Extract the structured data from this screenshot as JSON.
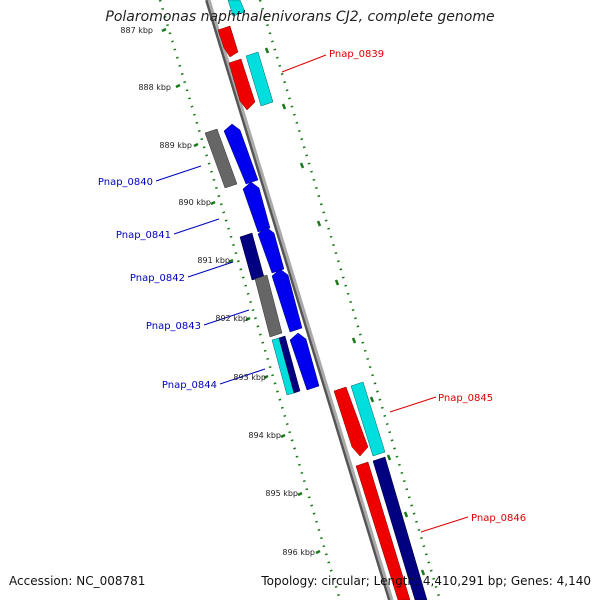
{
  "title": "Polaromonas naphthalenivorans CJ2, complete genome",
  "accession": "Accession: NC_008781",
  "summary": "Topology: circular; Length: 4,410,291 bp; Genes: 4,140",
  "colors": {
    "backbone": "#8c8c8c",
    "tick_green": "#1a7a1a",
    "label_red": "#dd0000",
    "label_blue": "#0000bb",
    "gene_red": "#ee0000",
    "gene_blue": "#0000ee",
    "gene_cyan": "#00dddd",
    "gene_grey": "#666666",
    "gene_navy": "#000080"
  },
  "ticks": [
    "887 kbp",
    "888 kbp",
    "889 kbp",
    "890 kbp",
    "891 kbp",
    "892 kbp",
    "893 kbp",
    "894 kbp",
    "895 kbp",
    "896 kbp"
  ],
  "gene_labels": [
    {
      "id": "Pnap_0839",
      "strand": "forward"
    },
    {
      "id": "Pnap_0840",
      "strand": "reverse"
    },
    {
      "id": "Pnap_0841",
      "strand": "reverse"
    },
    {
      "id": "Pnap_0842",
      "strand": "reverse"
    },
    {
      "id": "Pnap_0843",
      "strand": "reverse"
    },
    {
      "id": "Pnap_0844",
      "strand": "reverse"
    },
    {
      "id": "Pnap_0845",
      "strand": "forward"
    },
    {
      "id": "Pnap_0846",
      "strand": "forward"
    }
  ]
}
